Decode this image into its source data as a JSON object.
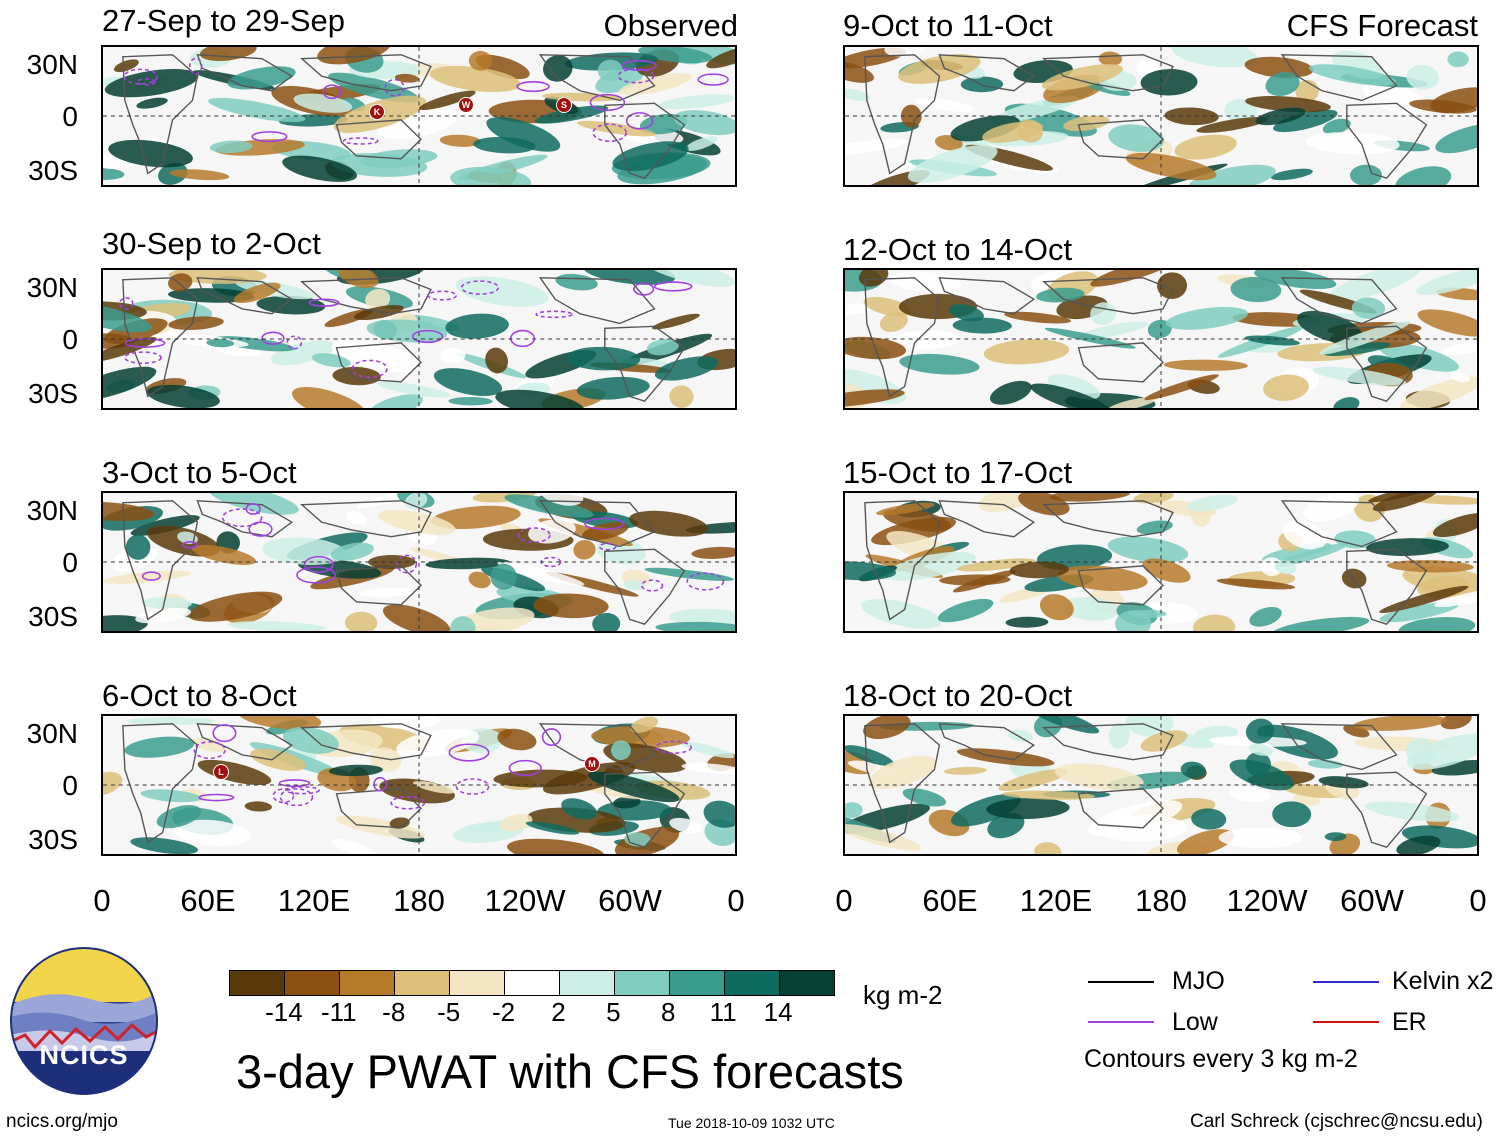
{
  "headers": {
    "observed": "Observed",
    "forecast": "CFS Forecast"
  },
  "panels": {
    "observed": [
      {
        "title": "27-Sep to 29-Sep",
        "markers": [
          "K",
          "W",
          "S"
        ]
      },
      {
        "title": "30-Sep to 2-Oct",
        "markers": []
      },
      {
        "title": "3-Oct to 5-Oct",
        "markers": []
      },
      {
        "title": "6-Oct to 8-Oct",
        "markers": [
          "L",
          "M"
        ]
      }
    ],
    "forecast": [
      {
        "title": "9-Oct to 11-Oct"
      },
      {
        "title": "12-Oct to 14-Oct"
      },
      {
        "title": "15-Oct to 17-Oct"
      },
      {
        "title": "18-Oct to 20-Oct"
      }
    ]
  },
  "lat_labels": [
    "30N",
    "0",
    "30S"
  ],
  "lon_labels": [
    "0",
    "60E",
    "120E",
    "180",
    "120W",
    "60W",
    "0"
  ],
  "colorbar": {
    "colors": [
      "#5a3a0b",
      "#8a5012",
      "#b67a2b",
      "#dcc07a",
      "#f4e6c4",
      "#ffffff",
      "#cdeee6",
      "#7fcdbf",
      "#3b9c8e",
      "#0f6b60",
      "#064034"
    ],
    "labels": [
      "-14",
      "-11",
      "-8",
      "-5",
      "-2",
      "2",
      "5",
      "8",
      "11",
      "14"
    ],
    "unit": "kg m-2"
  },
  "legend": {
    "items": [
      {
        "label": "MJO",
        "color": "#000000"
      },
      {
        "label": "Kelvin x2",
        "color": "#2b2bd0"
      },
      {
        "label": "Low",
        "color": "#a040e0"
      },
      {
        "label": "ER",
        "color": "#d01010"
      }
    ],
    "note": "Contours every 3 kg m-2"
  },
  "logo": {
    "text": "NCICS"
  },
  "footer": {
    "title": "3-day PWAT with CFS forecasts",
    "url": "ncics.org/mjo",
    "timestamp": "Tue 2018-10-09 1032 UTC",
    "credit": "Carl Schreck (cjschrec@ncsu.edu)"
  }
}
